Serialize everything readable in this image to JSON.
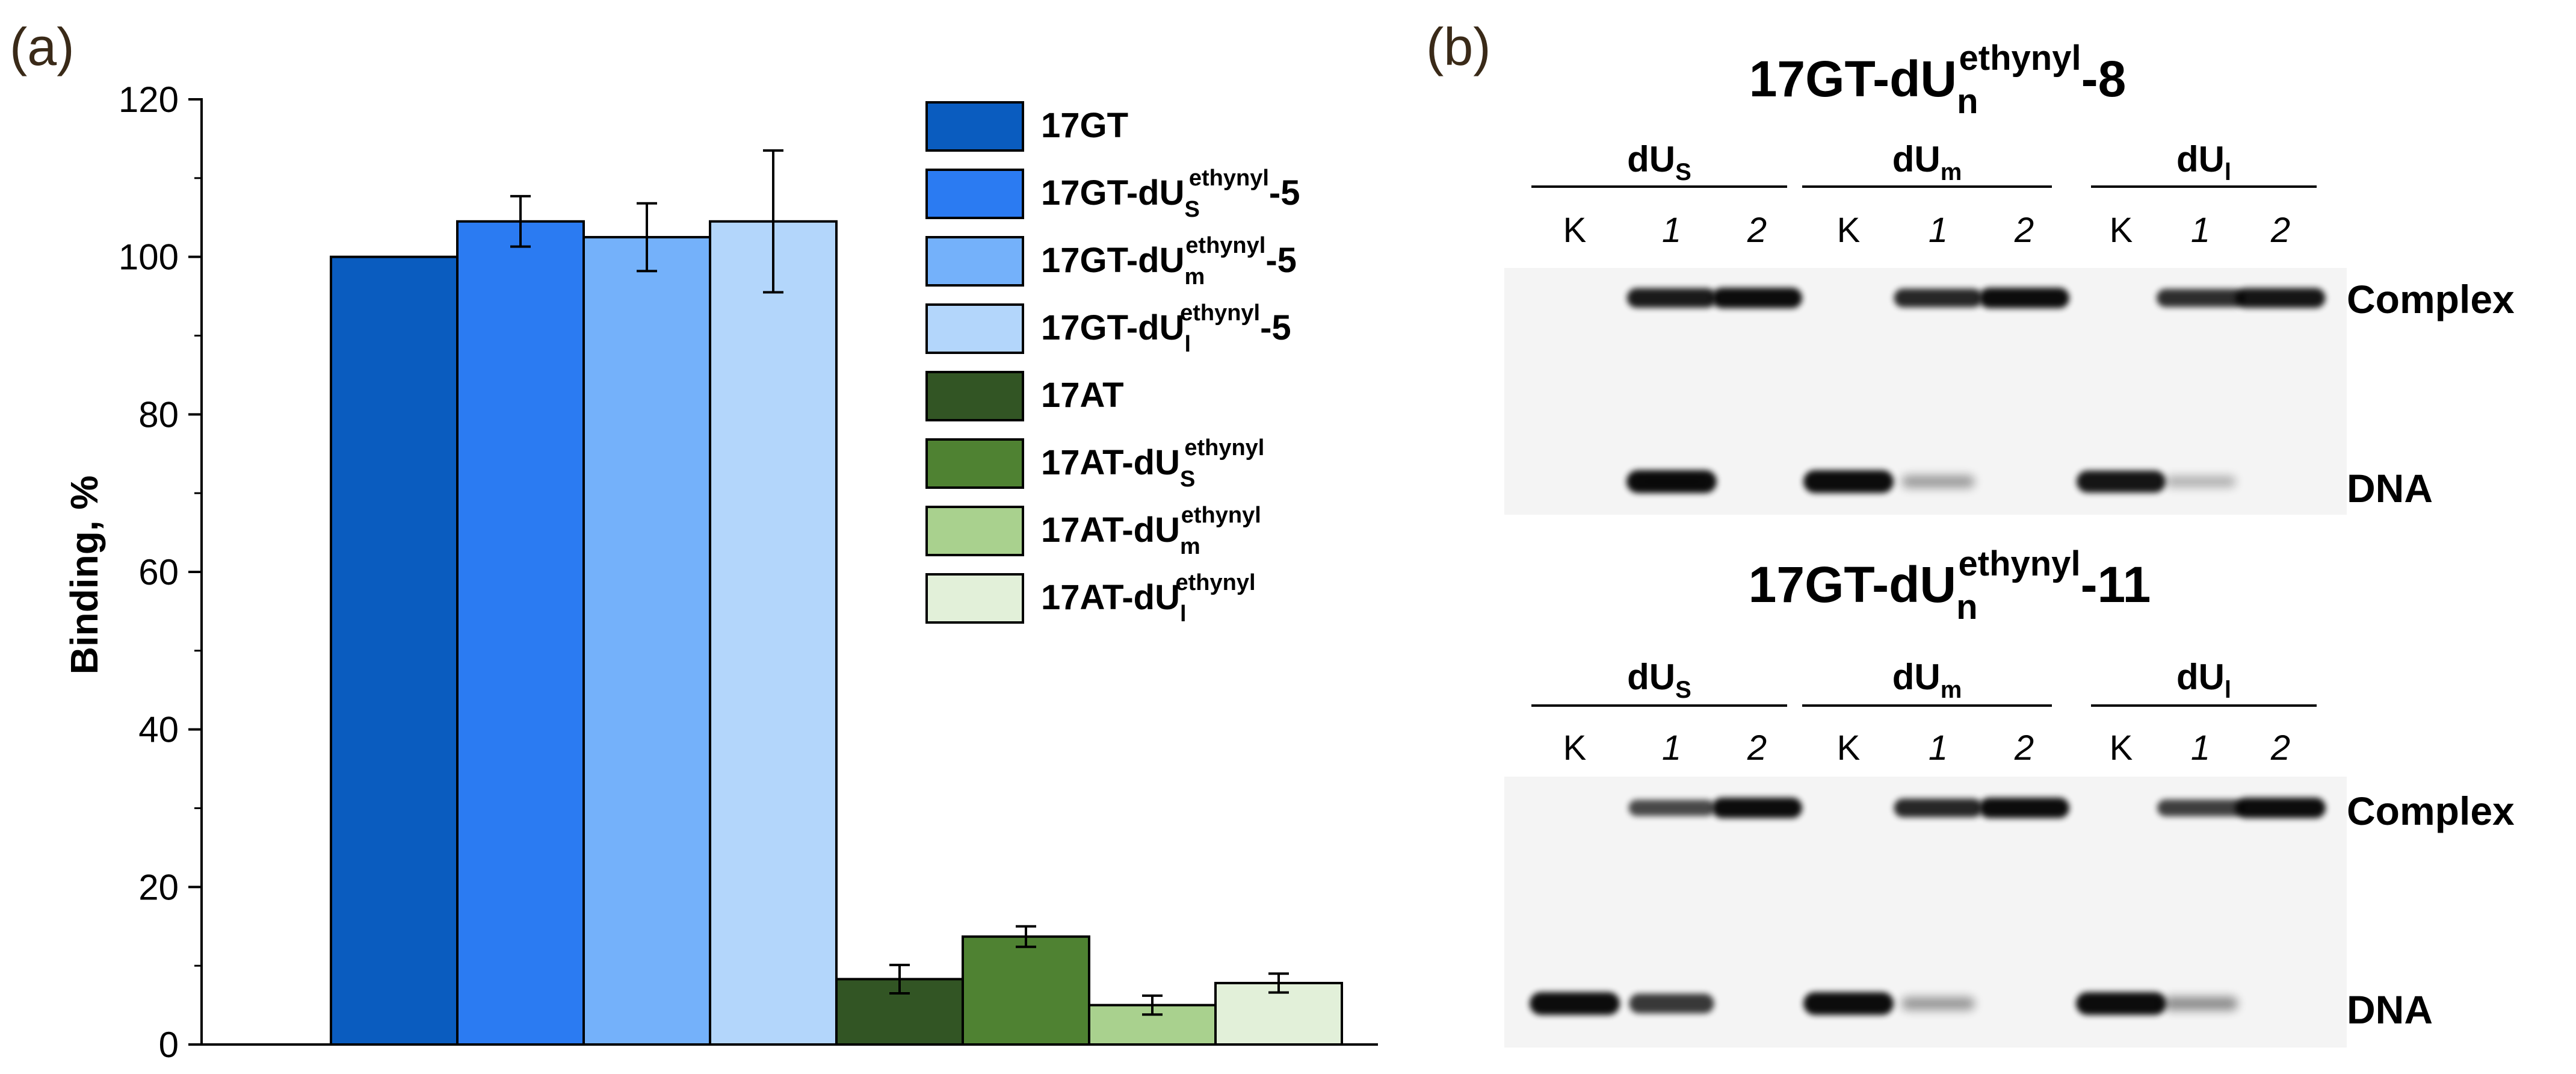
{
  "panel_labels": {
    "a": "(a)",
    "b": "(b)"
  },
  "chart_data": {
    "type": "bar",
    "title": "",
    "xlabel": "",
    "ylabel": "Binding, %",
    "ylim": [
      0,
      120
    ],
    "yticks": [
      0,
      20,
      40,
      60,
      80,
      100,
      120
    ],
    "grid": false,
    "legend_position": "top-right",
    "series": [
      {
        "name": "17GT",
        "base": "17GT",
        "sub": "",
        "sup": "",
        "tail": "",
        "value": 100,
        "error": 0,
        "color": "#0a5cbf"
      },
      {
        "name": "17GT-dUSethynyl-5",
        "base": "17GT-dU",
        "sub": "S",
        "sup": "ethynyl",
        "tail": "-5",
        "value": 104.5,
        "error": 3.2,
        "color": "#2b7bf2"
      },
      {
        "name": "17GT-dUmethynyl-5",
        "base": "17GT-dU",
        "sub": "m",
        "sup": "ethynyl",
        "tail": "-5",
        "value": 102.5,
        "error": 4.3,
        "color": "#74b1fa"
      },
      {
        "name": "17GT-dUlethynyl-5",
        "base": "17GT-dU",
        "sub": "l",
        "sup": "ethynyl",
        "tail": "-5",
        "value": 104.5,
        "error": 9.0,
        "color": "#b3d6fb"
      },
      {
        "name": "17AT",
        "base": "17AT",
        "sub": "",
        "sup": "",
        "tail": "",
        "value": 8.3,
        "error": 1.8,
        "color": "#325524"
      },
      {
        "name": "17AT-dUSethynyl",
        "base": "17AT-dU",
        "sub": "S",
        "sup": "ethynyl",
        "tail": "",
        "value": 13.7,
        "error": 1.3,
        "color": "#4f8232"
      },
      {
        "name": "17AT-dUmethynyl",
        "base": "17AT-dU",
        "sub": "m",
        "sup": "ethynyl",
        "tail": "",
        "value": 5.0,
        "error": 1.2,
        "color": "#a9d18e"
      },
      {
        "name": "17AT-dUlethynyl",
        "base": "17AT-dU",
        "sub": "l",
        "sup": "ethynyl",
        "tail": "",
        "value": 7.8,
        "error": 1.2,
        "color": "#e2f0d9"
      }
    ]
  },
  "gels": [
    {
      "title_base": "17GT-dU",
      "title_sub": "n",
      "title_sup": "ethynyl",
      "title_tail": "-8",
      "groups": [
        {
          "base": "dU",
          "sub": "S",
          "lanes": [
            "K",
            "1",
            "2"
          ]
        },
        {
          "base": "dU",
          "sub": "m",
          "lanes": [
            "K",
            "1",
            "2"
          ]
        },
        {
          "base": "dU",
          "sub": "l",
          "lanes": [
            "K",
            "1",
            "2"
          ]
        }
      ],
      "band_labels": {
        "complex": "Complex",
        "dna": "DNA"
      }
    },
    {
      "title_base": "17GT-dU",
      "title_sub": "n",
      "title_sup": "ethynyl",
      "title_tail": "-11",
      "groups": [
        {
          "base": "dU",
          "sub": "S",
          "lanes": [
            "K",
            "1",
            "2"
          ]
        },
        {
          "base": "dU",
          "sub": "m",
          "lanes": [
            "K",
            "1",
            "2"
          ]
        },
        {
          "base": "dU",
          "sub": "l",
          "lanes": [
            "K",
            "1",
            "2"
          ]
        }
      ],
      "band_labels": {
        "complex": "Complex",
        "dna": "DNA"
      }
    }
  ]
}
